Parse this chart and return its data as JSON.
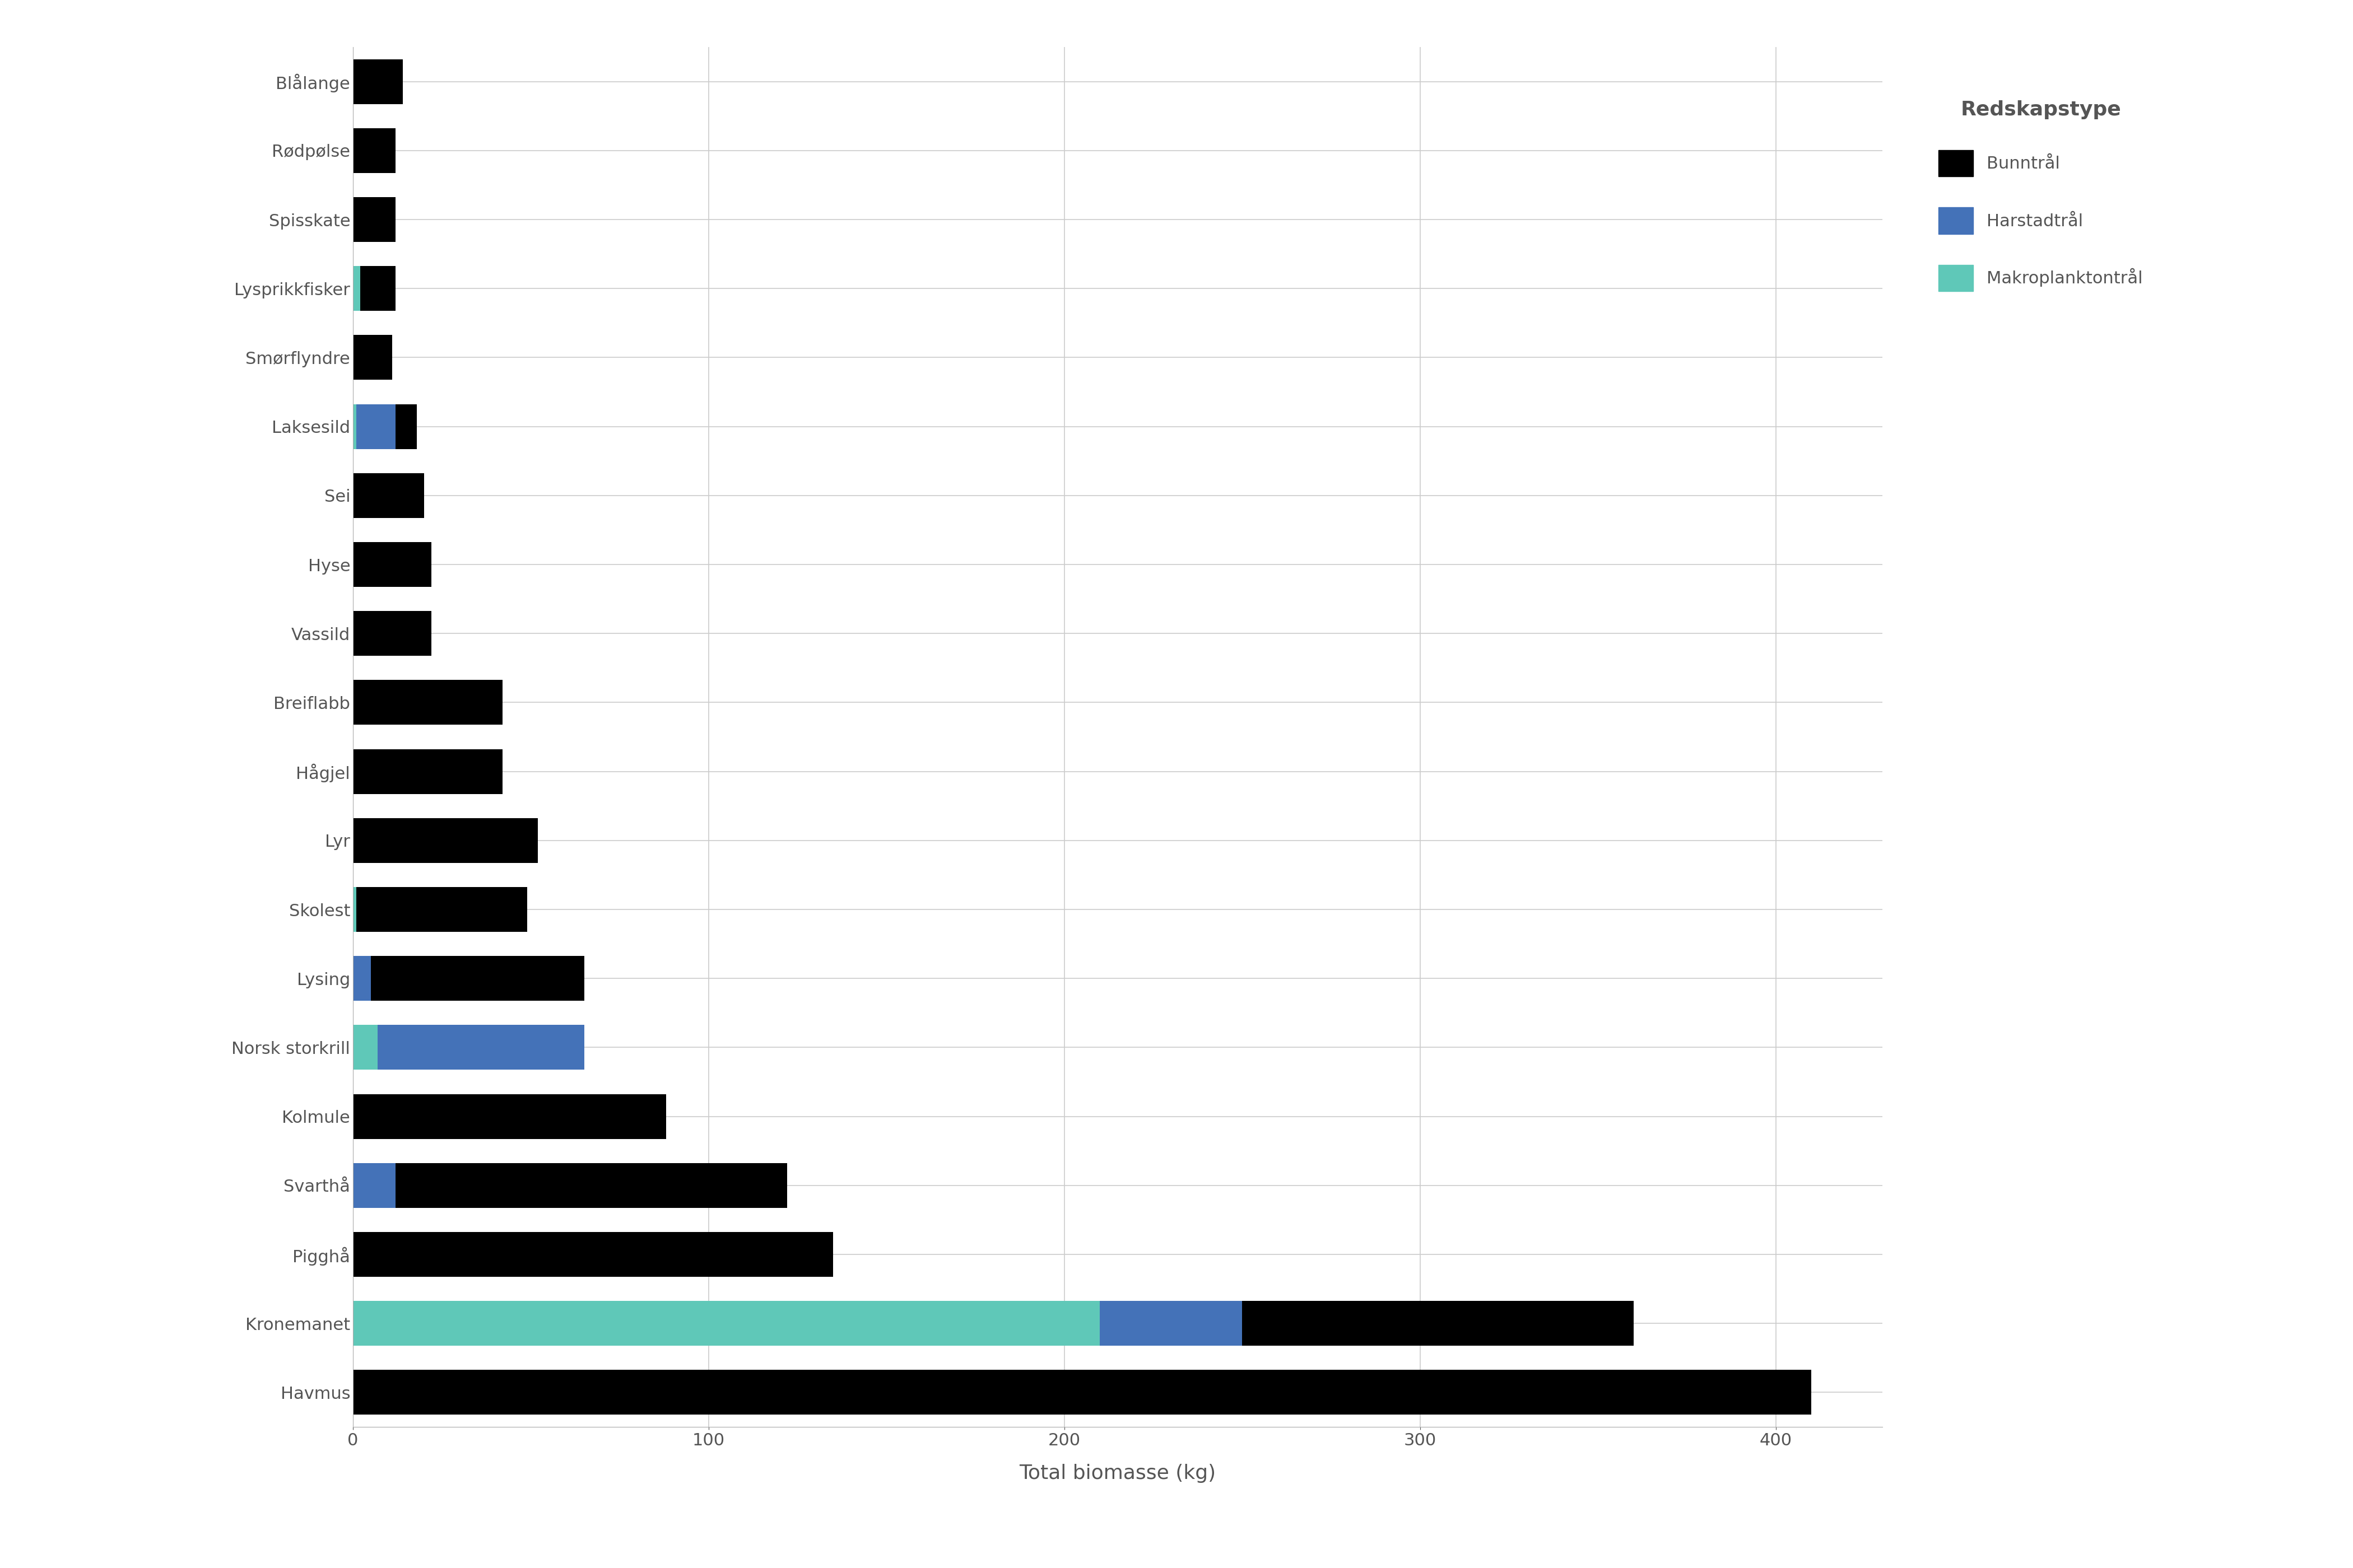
{
  "species": [
    "Havmus",
    "Kronemanet",
    "Pigghå",
    "Svarthå",
    "Kolmule",
    "Norsk storkrill",
    "Lysing",
    "Skolest",
    "Lyr",
    "Hågjel",
    "Breiflabb",
    "Vassild",
    "Hyse",
    "Sei",
    "Laksesild",
    "Smørflyndre",
    "Lysprikkfisker",
    "Spisskate",
    "Rødpølse",
    "Blålange"
  ],
  "bunntraal": [
    410,
    110,
    135,
    110,
    88,
    0,
    60,
    48,
    52,
    42,
    42,
    22,
    22,
    20,
    6,
    11,
    10,
    12,
    12,
    14
  ],
  "harstadtraal": [
    0,
    40,
    0,
    12,
    0,
    58,
    5,
    0,
    0,
    0,
    0,
    0,
    0,
    0,
    11,
    0,
    0,
    0,
    0,
    0
  ],
  "makroplanktontraal": [
    0,
    210,
    0,
    0,
    0,
    7,
    0,
    1,
    0,
    0,
    0,
    0,
    0,
    0,
    1,
    0,
    2,
    0,
    0,
    0
  ],
  "color_bunntraal": "#000000",
  "color_harstadtraal": "#4472B8",
  "color_makroplanktontraal": "#5FC8B8",
  "xlabel": "Total biomasse (kg)",
  "legend_title": "Redskapstype",
  "legend_labels": [
    "Bunntrål",
    "Harstadtrål",
    "Makroplanktontrål"
  ],
  "xlim": [
    0,
    430
  ],
  "xticks": [
    0,
    100,
    200,
    300,
    400
  ],
  "background_color": "#ffffff",
  "grid_color": "#cccccc"
}
